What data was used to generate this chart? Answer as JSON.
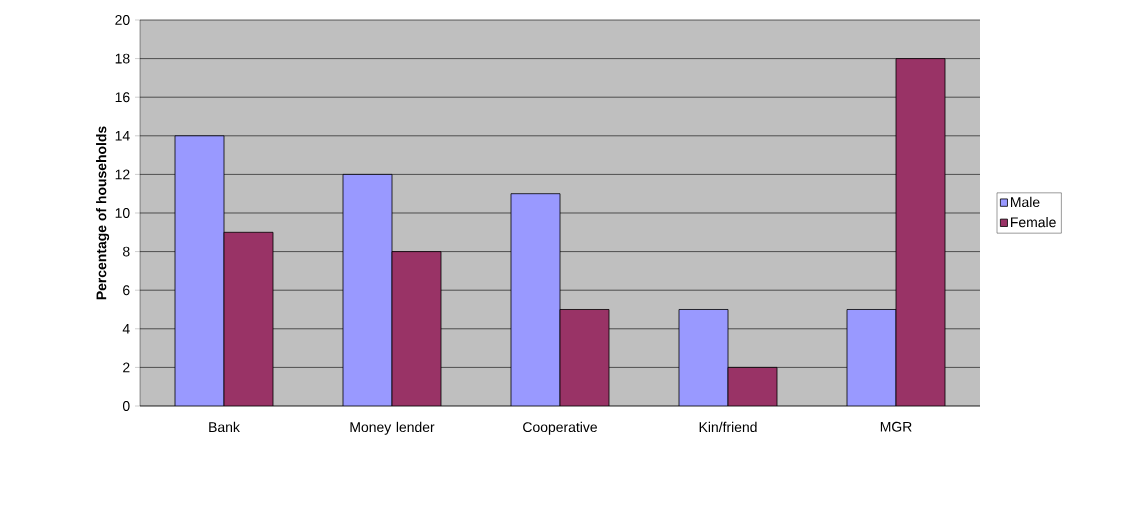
{
  "chart_data": {
    "type": "bar",
    "ylabel": "Percentage of households",
    "categories": [
      "Bank",
      "Money lender",
      "Cooperative",
      "Kin/friend",
      "MGR"
    ],
    "series": [
      {
        "name": "Male",
        "color": "#9999ff",
        "values": [
          14,
          12,
          11,
          5,
          5
        ]
      },
      {
        "name": "Female",
        "color": "#993366",
        "values": [
          9,
          8,
          5,
          2,
          18
        ]
      }
    ],
    "ylim": [
      0,
      20
    ],
    "yticks": [
      0,
      2,
      4,
      6,
      8,
      10,
      12,
      14,
      16,
      18,
      20
    ],
    "grid": "y",
    "legend": "right"
  }
}
